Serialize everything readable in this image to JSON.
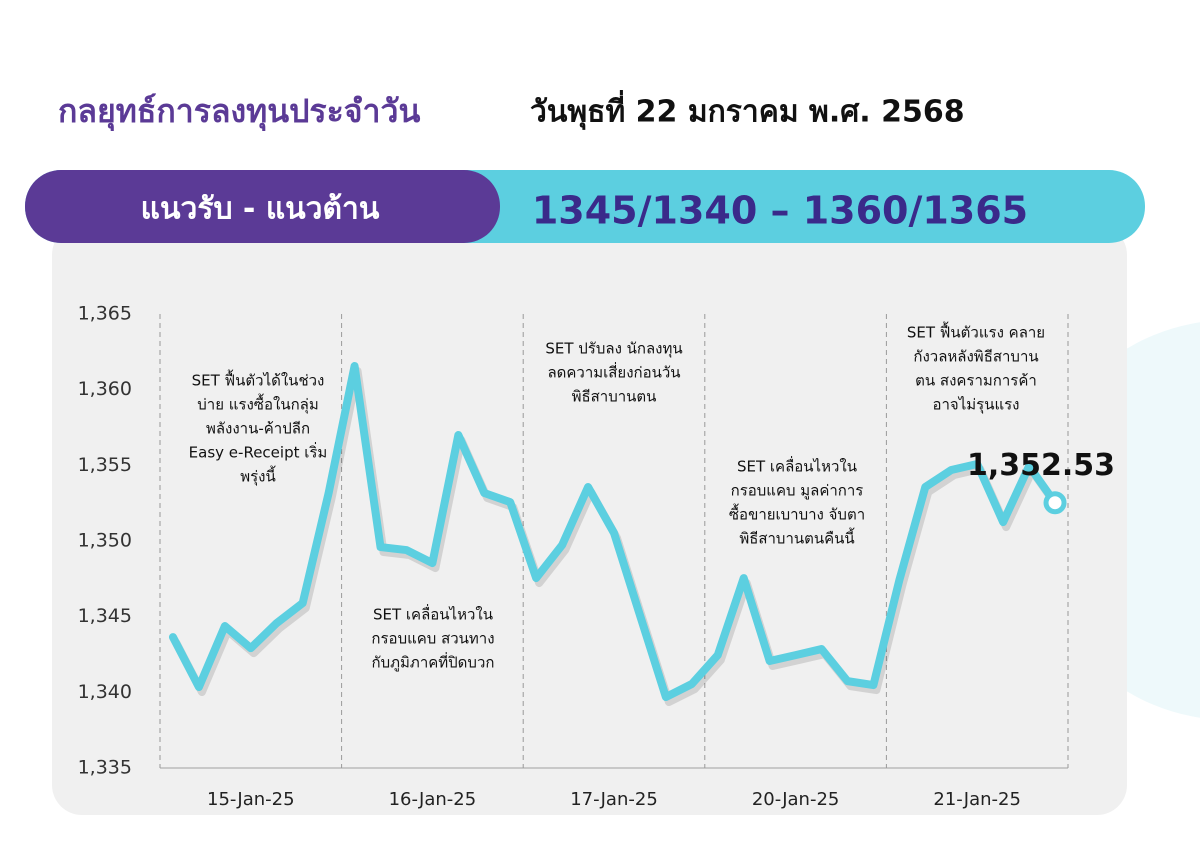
{
  "header": {
    "title": "กลยุทธ์การลงทุนประจำวัน",
    "date": "วันพุธที่ 22 มกราคม พ.ศ. 2568"
  },
  "banner": {
    "label": "แนวรับ - แนวต้าน",
    "value": "1345/1340 – 1360/1365"
  },
  "chart_data": {
    "type": "line",
    "x": [
      0,
      1,
      2,
      3,
      4,
      5,
      6,
      7,
      8,
      9,
      10,
      11,
      12,
      13,
      14,
      15,
      16,
      17,
      18,
      19,
      20,
      21,
      22,
      23,
      24,
      25,
      26,
      27,
      28,
      29,
      30,
      31,
      32,
      33,
      34
    ],
    "series": [
      {
        "name": "SET",
        "color": "#5ccfe0",
        "values": [
          1343.65,
          1340.35,
          1344.38,
          1342.92,
          1344.58,
          1345.9,
          1353.17,
          1361.56,
          1349.6,
          1349.4,
          1348.54,
          1357.0,
          1353.17,
          1352.57,
          1347.55,
          1349.73,
          1353.57,
          1350.53,
          1345.1,
          1339.69,
          1340.55,
          1342.46,
          1347.55,
          1342.07,
          1342.46,
          1342.86,
          1340.74,
          1340.48,
          1347.42,
          1353.57,
          1354.69,
          1355.09,
          1351.25,
          1354.95,
          1352.53
        ],
        "value_labels": [
          null,
          null,
          null,
          null,
          null,
          null,
          null,
          null,
          null,
          null,
          null,
          null,
          null,
          null,
          null,
          null,
          null,
          null,
          null,
          null,
          null,
          null,
          null,
          null,
          null,
          null,
          null,
          null,
          null,
          null,
          null,
          null,
          null,
          null,
          "1,352.53"
        ]
      }
    ],
    "xlim": [
      -0.5,
      34.5
    ],
    "xticks": [
      {
        "value": 3,
        "label": "15-Jan-25"
      },
      {
        "value": 10,
        "label": "16-Jan-25"
      },
      {
        "value": 17,
        "label": "17-Jan-25"
      },
      {
        "value": 24,
        "label": "20-Jan-25"
      },
      {
        "value": 31,
        "label": "21-Jan-25"
      }
    ],
    "day_dividers": [
      -0.5,
      6.5,
      13.5,
      20.5,
      27.5,
      34.5
    ],
    "ylim": [
      1335,
      1365
    ],
    "yticks": [
      {
        "value": 1335,
        "label": "1,335"
      },
      {
        "value": 1340,
        "label": "1,340"
      },
      {
        "value": 1345,
        "label": "1,345"
      },
      {
        "value": 1350,
        "label": "1,350"
      },
      {
        "value": 1355,
        "label": "1,355"
      },
      {
        "value": 1360,
        "label": "1,360"
      },
      {
        "value": 1365,
        "label": "1,365"
      }
    ],
    "annotations": [
      [
        "SET ฟื้นตัวได้ในช่วง",
        "บ่าย แรงซื้อในกลุ่ม",
        "พลังงาน-ค้าปลีก",
        "Easy e-Receipt เริ่ม",
        "พรุ่งนี้"
      ],
      [
        "SET เคลื่อนไหวใน",
        "กรอบแคบ สวนทาง",
        "กับภูมิภาคที่ปิดบวก"
      ],
      [
        "SET ปรับลง นักลงทุน",
        "ลดความเสี่ยงก่อนวัน",
        "พิธีสาบานตน"
      ],
      [
        "SET เคลื่อนไหวใน",
        "กรอบแคบ มูลค่าการ",
        "ซื้อขายเบาบาง จับตา",
        "พิธีสาบานตนคืนนี้"
      ],
      [
        "SET ฟื้นตัวแรง คลาย",
        "กังวลหลังพิธีสาบาน",
        "ตน สงครามการค้า",
        "อาจไม่รุนแรง"
      ]
    ]
  }
}
